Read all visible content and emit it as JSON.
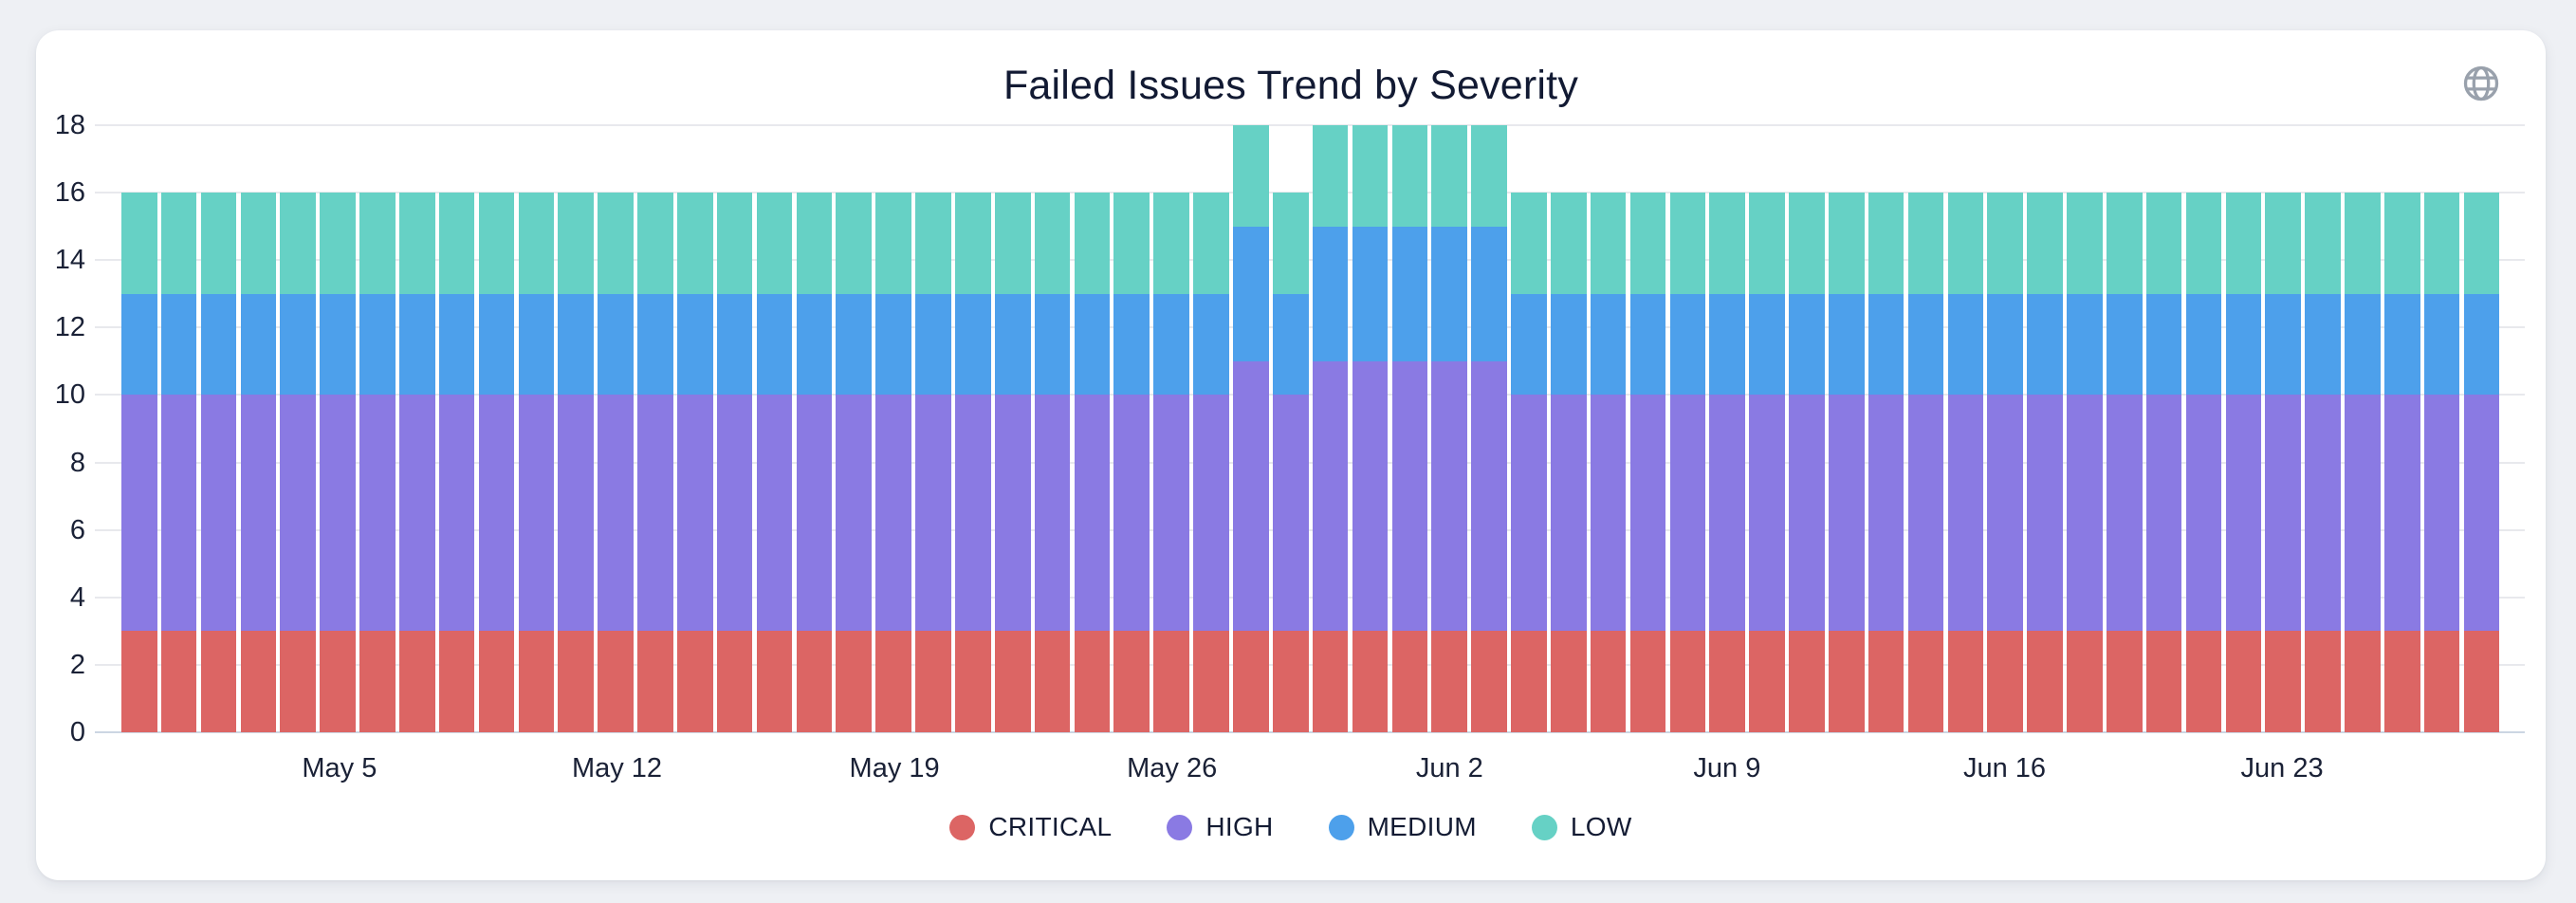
{
  "header": {
    "title": "Failed Issues Trend by Severity"
  },
  "icons": {
    "top_right": "globe-icon"
  },
  "colors": {
    "page_background": "#eef0f4",
    "card_background": "#ffffff",
    "title_text": "#121a33",
    "tick_text": "#1a2136",
    "gridline": "#e8e9ed",
    "zero_axis": "#ccd6e3",
    "globe_icon": "#99a1ac",
    "critical": "#dc6564",
    "high": "#8a7ae3",
    "medium": "#4da0eb",
    "low": "#66d1c5"
  },
  "chart_data": {
    "type": "bar",
    "stacked": true,
    "title": "Failed Issues Trend by Severity",
    "xlabel": "",
    "ylabel": "",
    "ylim": [
      0,
      18
    ],
    "y_ticks": [
      0,
      2,
      4,
      6,
      8,
      10,
      12,
      14,
      16,
      18
    ],
    "grid": "horizontal",
    "legend_position": "bottom-center",
    "x": [
      "Apr 30",
      "May 1",
      "May 2",
      "May 3",
      "May 4",
      "May 5",
      "May 6",
      "May 7",
      "May 8",
      "May 9",
      "May 10",
      "May 11",
      "May 12",
      "May 13",
      "May 14",
      "May 15",
      "May 16",
      "May 17",
      "May 18",
      "May 19",
      "May 20",
      "May 21",
      "May 22",
      "May 23",
      "May 24",
      "May 25",
      "May 26",
      "May 27",
      "May 28",
      "May 29",
      "May 30",
      "May 31",
      "Jun 1",
      "Jun 2",
      "Jun 3",
      "Jun 4",
      "Jun 5",
      "Jun 6",
      "Jun 7",
      "Jun 8",
      "Jun 9",
      "Jun 10",
      "Jun 11",
      "Jun 12",
      "Jun 13",
      "Jun 14",
      "Jun 15",
      "Jun 16",
      "Jun 17",
      "Jun 18",
      "Jun 19",
      "Jun 20",
      "Jun 21",
      "Jun 22",
      "Jun 23",
      "Jun 24",
      "Jun 25",
      "Jun 26",
      "Jun 27",
      "Jun 28"
    ],
    "x_tick_labels": [
      "May 5",
      "May 12",
      "May 19",
      "May 26",
      "Jun 2",
      "Jun 9",
      "Jun 16",
      "Jun 23"
    ],
    "x_tick_indices": [
      5,
      12,
      19,
      26,
      33,
      40,
      47,
      54
    ],
    "series": [
      {
        "name": "CRITICAL",
        "color": "#dc6564",
        "values": [
          3,
          3,
          3,
          3,
          3,
          3,
          3,
          3,
          3,
          3,
          3,
          3,
          3,
          3,
          3,
          3,
          3,
          3,
          3,
          3,
          3,
          3,
          3,
          3,
          3,
          3,
          3,
          3,
          3,
          3,
          3,
          3,
          3,
          3,
          3,
          3,
          3,
          3,
          3,
          3,
          3,
          3,
          3,
          3,
          3,
          3,
          3,
          3,
          3,
          3,
          3,
          3,
          3,
          3,
          3,
          3,
          3,
          3,
          3,
          3
        ]
      },
      {
        "name": "HIGH",
        "color": "#8a7ae3",
        "values": [
          7,
          7,
          7,
          7,
          7,
          7,
          7,
          7,
          7,
          7,
          7,
          7,
          7,
          7,
          7,
          7,
          7,
          7,
          7,
          7,
          7,
          7,
          7,
          7,
          7,
          7,
          7,
          7,
          8,
          7,
          8,
          8,
          8,
          8,
          8,
          7,
          7,
          7,
          7,
          7,
          7,
          7,
          7,
          7,
          7,
          7,
          7,
          7,
          7,
          7,
          7,
          7,
          7,
          7,
          7,
          7,
          7,
          7,
          7,
          7
        ]
      },
      {
        "name": "MEDIUM",
        "color": "#4da0eb",
        "values": [
          3,
          3,
          3,
          3,
          3,
          3,
          3,
          3,
          3,
          3,
          3,
          3,
          3,
          3,
          3,
          3,
          3,
          3,
          3,
          3,
          3,
          3,
          3,
          3,
          3,
          3,
          3,
          3,
          4,
          3,
          4,
          4,
          4,
          4,
          4,
          3,
          3,
          3,
          3,
          3,
          3,
          3,
          3,
          3,
          3,
          3,
          3,
          3,
          3,
          3,
          3,
          3,
          3,
          3,
          3,
          3,
          3,
          3,
          3,
          3
        ]
      },
      {
        "name": "LOW",
        "color": "#66d1c5",
        "values": [
          3,
          3,
          3,
          3,
          3,
          3,
          3,
          3,
          3,
          3,
          3,
          3,
          3,
          3,
          3,
          3,
          3,
          3,
          3,
          3,
          3,
          3,
          3,
          3,
          3,
          3,
          3,
          3,
          3,
          3,
          3,
          3,
          3,
          3,
          3,
          3,
          3,
          3,
          3,
          3,
          3,
          3,
          3,
          3,
          3,
          3,
          3,
          3,
          3,
          3,
          3,
          3,
          3,
          3,
          3,
          3,
          3,
          3,
          3,
          3
        ]
      }
    ]
  }
}
